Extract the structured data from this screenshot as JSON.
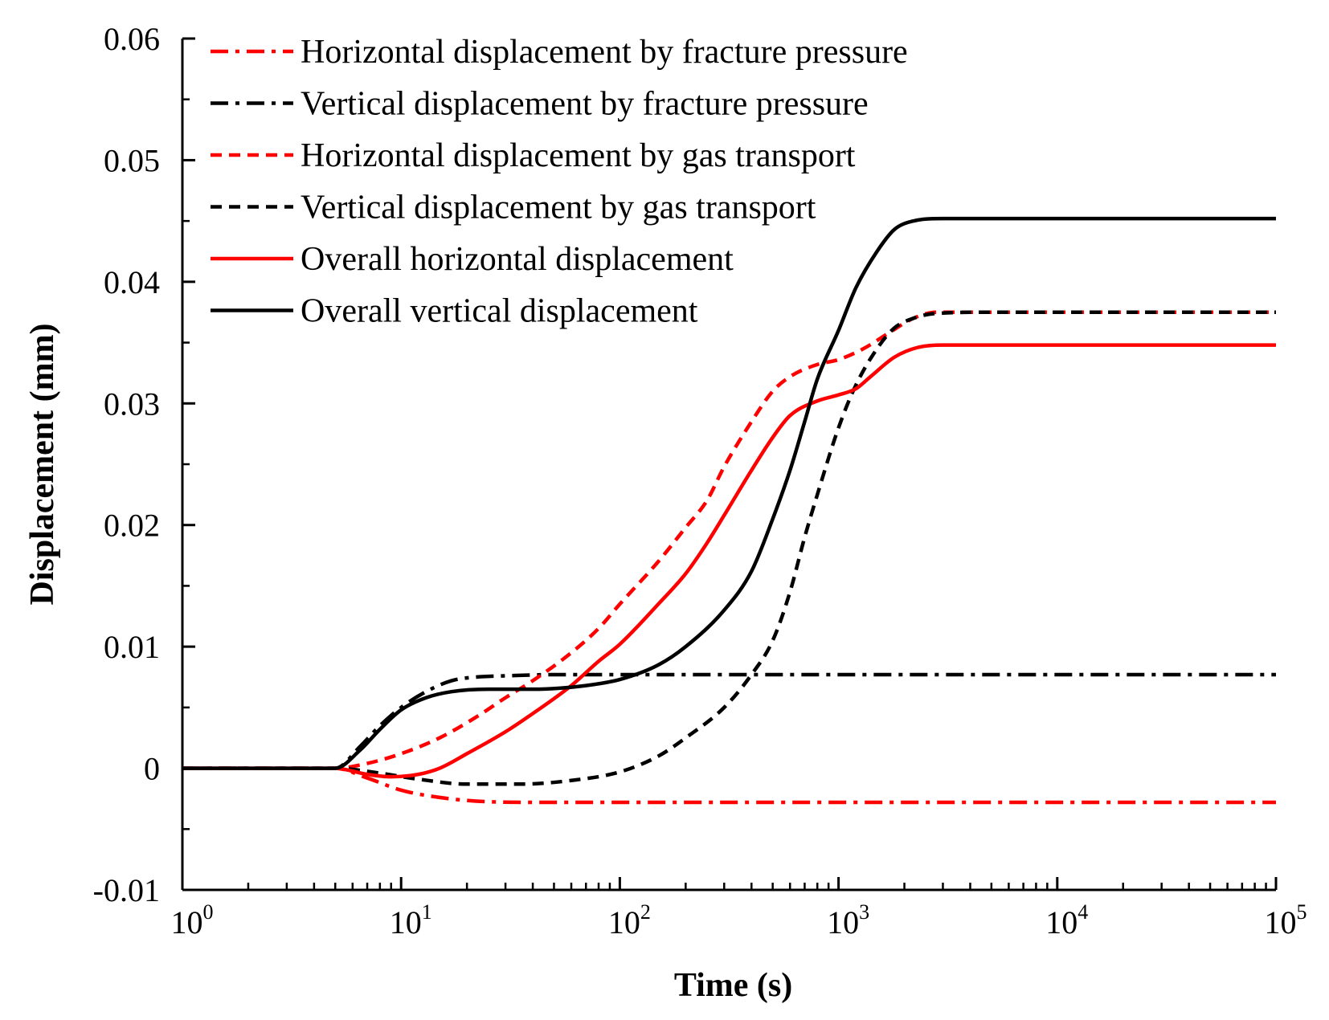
{
  "chart_data": {
    "type": "line",
    "title": "",
    "xlabel": "Time (s)",
    "ylabel": "Displacement (mm)",
    "xscale": "log",
    "xlim": [
      1,
      100000
    ],
    "ylim": [
      -0.01,
      0.06
    ],
    "x_ticks": [
      {
        "base": "10",
        "exp": "0"
      },
      {
        "base": "10",
        "exp": "1"
      },
      {
        "base": "10",
        "exp": "2"
      },
      {
        "base": "10",
        "exp": "3"
      },
      {
        "base": "10",
        "exp": "4"
      },
      {
        "base": "10",
        "exp": "5"
      }
    ],
    "y_ticks": [
      "-0.01",
      "0",
      "0.01",
      "0.02",
      "0.03",
      "0.04",
      "0.05",
      "0.06"
    ],
    "legend_position": "top-left",
    "series": [
      {
        "name": "Horizontal displacement by fracture pressure",
        "color": "#ff0000",
        "dash": "dashdot",
        "points": [
          [
            1,
            0
          ],
          [
            5,
            0
          ],
          [
            7,
            -0.0008
          ],
          [
            10,
            -0.0018
          ],
          [
            15,
            -0.0024
          ],
          [
            22,
            -0.0027
          ],
          [
            40,
            -0.0028
          ],
          [
            100,
            -0.0028
          ],
          [
            1000,
            -0.0028
          ],
          [
            100000,
            -0.0028
          ]
        ]
      },
      {
        "name": "Vertical displacement by fracture pressure",
        "color": "#000000",
        "dash": "dashdot",
        "points": [
          [
            1,
            0
          ],
          [
            5,
            0
          ],
          [
            6.5,
            0.0018
          ],
          [
            8,
            0.0035
          ],
          [
            10,
            0.005
          ],
          [
            13,
            0.0063
          ],
          [
            17,
            0.0072
          ],
          [
            22,
            0.0075
          ],
          [
            30,
            0.0076
          ],
          [
            50,
            0.0077
          ],
          [
            100,
            0.0077
          ],
          [
            1000,
            0.0077
          ],
          [
            100000,
            0.0077
          ]
        ]
      },
      {
        "name": "Horizontal displacement by gas transport",
        "color": "#ff0000",
        "dash": "dash",
        "points": [
          [
            1,
            0
          ],
          [
            5,
            0
          ],
          [
            7,
            0.0004
          ],
          [
            10,
            0.0012
          ],
          [
            15,
            0.0025
          ],
          [
            22,
            0.0042
          ],
          [
            30,
            0.0058
          ],
          [
            40,
            0.0072
          ],
          [
            60,
            0.0095
          ],
          [
            80,
            0.0115
          ],
          [
            100,
            0.0135
          ],
          [
            150,
            0.017
          ],
          [
            200,
            0.0198
          ],
          [
            250,
            0.022
          ],
          [
            300,
            0.0248
          ],
          [
            400,
            0.0285
          ],
          [
            500,
            0.031
          ],
          [
            600,
            0.0322
          ],
          [
            800,
            0.0332
          ],
          [
            1000,
            0.0336
          ],
          [
            1300,
            0.0345
          ],
          [
            1700,
            0.0358
          ],
          [
            2200,
            0.037
          ],
          [
            2800,
            0.0375
          ],
          [
            5000,
            0.0375
          ],
          [
            100000,
            0.0375
          ]
        ]
      },
      {
        "name": "Vertical displacement by gas transport",
        "color": "#000000",
        "dash": "dash",
        "points": [
          [
            1,
            0
          ],
          [
            5,
            0
          ],
          [
            8,
            -0.0004
          ],
          [
            12,
            -0.0009
          ],
          [
            20,
            -0.0013
          ],
          [
            35,
            -0.0013
          ],
          [
            60,
            -0.001
          ],
          [
            100,
            -0.0003
          ],
          [
            150,
            0.001
          ],
          [
            200,
            0.0025
          ],
          [
            300,
            0.005
          ],
          [
            400,
            0.0077
          ],
          [
            500,
            0.0105
          ],
          [
            600,
            0.0145
          ],
          [
            700,
            0.019
          ],
          [
            800,
            0.0225
          ],
          [
            1000,
            0.028
          ],
          [
            1200,
            0.0315
          ],
          [
            1500,
            0.0345
          ],
          [
            1800,
            0.0362
          ],
          [
            2200,
            0.037
          ],
          [
            2800,
            0.0374
          ],
          [
            5000,
            0.0375
          ],
          [
            100000,
            0.0375
          ]
        ]
      },
      {
        "name": "Overall horizontal displacement",
        "color": "#ff0000",
        "dash": "solid",
        "points": [
          [
            1,
            0
          ],
          [
            5,
            0
          ],
          [
            7,
            -0.0005
          ],
          [
            9,
            -0.0007
          ],
          [
            12,
            -0.0005
          ],
          [
            15,
            0
          ],
          [
            20,
            0.0012
          ],
          [
            30,
            0.003
          ],
          [
            40,
            0.0045
          ],
          [
            60,
            0.0068
          ],
          [
            80,
            0.0088
          ],
          [
            100,
            0.0102
          ],
          [
            150,
            0.0135
          ],
          [
            200,
            0.016
          ],
          [
            250,
            0.0185
          ],
          [
            300,
            0.0208
          ],
          [
            400,
            0.0245
          ],
          [
            500,
            0.0272
          ],
          [
            600,
            0.029
          ],
          [
            800,
            0.0302
          ],
          [
            1000,
            0.0307
          ],
          [
            1200,
            0.0312
          ],
          [
            1400,
            0.0322
          ],
          [
            1800,
            0.0338
          ],
          [
            2300,
            0.0346
          ],
          [
            3000,
            0.0348
          ],
          [
            100000,
            0.0348
          ]
        ]
      },
      {
        "name": "Overall vertical displacement",
        "color": "#000000",
        "dash": "solid",
        "points": [
          [
            1,
            0
          ],
          [
            5,
            0
          ],
          [
            6.5,
            0.0015
          ],
          [
            8,
            0.0032
          ],
          [
            10,
            0.0048
          ],
          [
            13,
            0.0058
          ],
          [
            17,
            0.0063
          ],
          [
            25,
            0.0065
          ],
          [
            40,
            0.0065
          ],
          [
            70,
            0.0068
          ],
          [
            100,
            0.0073
          ],
          [
            150,
            0.0085
          ],
          [
            200,
            0.01
          ],
          [
            300,
            0.013
          ],
          [
            400,
            0.0162
          ],
          [
            500,
            0.0205
          ],
          [
            600,
            0.0245
          ],
          [
            700,
            0.0285
          ],
          [
            800,
            0.032
          ],
          [
            1000,
            0.036
          ],
          [
            1200,
            0.0395
          ],
          [
            1500,
            0.0425
          ],
          [
            1800,
            0.0443
          ],
          [
            2200,
            0.045
          ],
          [
            3000,
            0.0452
          ],
          [
            100000,
            0.0452
          ]
        ]
      }
    ]
  }
}
